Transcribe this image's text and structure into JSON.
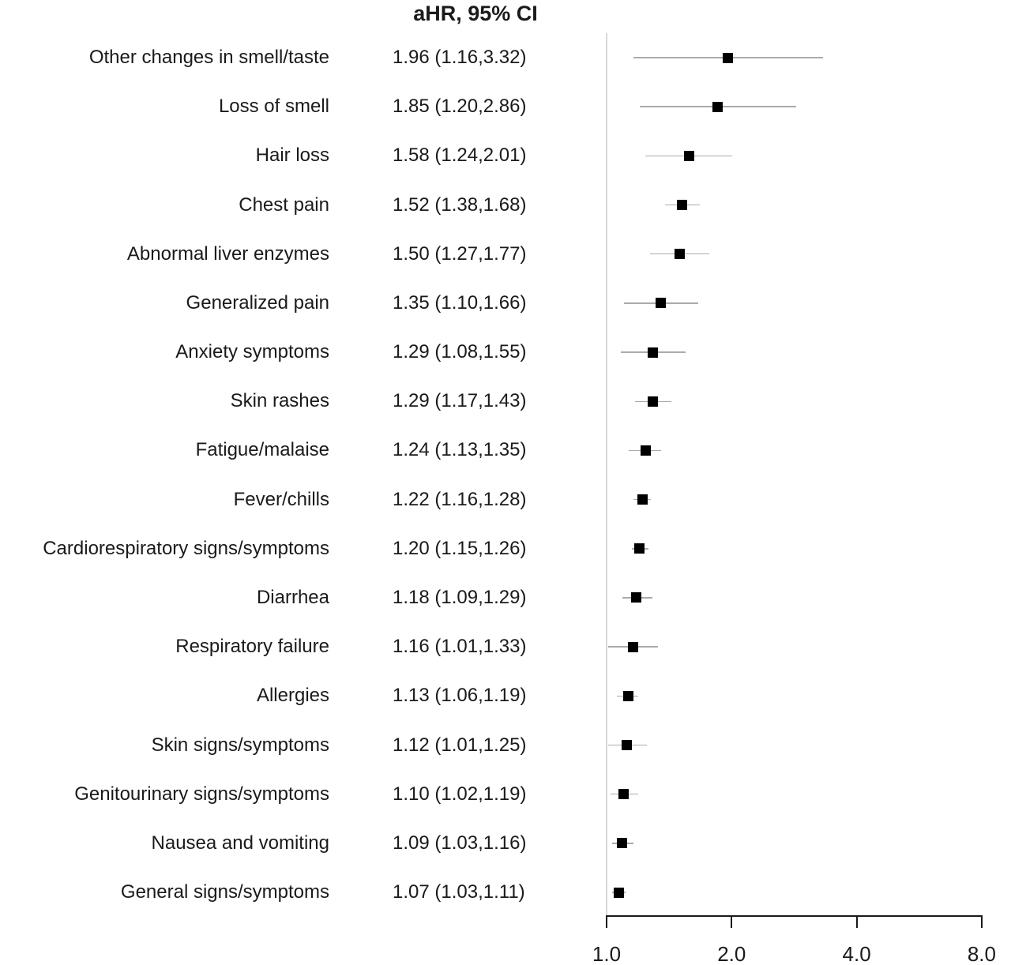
{
  "title": "aHR, 95% CI",
  "colors": {
    "marker": "#000000",
    "ci_line": "#ababab",
    "reference_line": "#d8d8d8",
    "axis": "#1a1a1a",
    "text": "#1a1a1a",
    "background": "#ffffff"
  },
  "chart_data": {
    "type": "scatter",
    "subtype": "forest-plot",
    "title": "aHR, 95% CI",
    "xlabel": "",
    "ylabel": "",
    "x_scale": "log2",
    "xlim": [
      1.0,
      8.0
    ],
    "x_ticks": [
      1.0,
      2.0,
      4.0,
      8.0
    ],
    "x_tick_labels": [
      "1.0",
      "2.0",
      "4.0",
      "8.0"
    ],
    "reference_line": 1.0,
    "grid": false,
    "legend": false,
    "rows": [
      {
        "label": "Other changes in smell/taste",
        "estimate_text": "1.96 (1.16,3.32)",
        "ahr": 1.96,
        "ci_low": 1.16,
        "ci_high": 3.32
      },
      {
        "label": "Loss of smell",
        "estimate_text": "1.85 (1.20,2.86)",
        "ahr": 1.85,
        "ci_low": 1.2,
        "ci_high": 2.86
      },
      {
        "label": "Hair loss",
        "estimate_text": "1.58 (1.24,2.01)",
        "ahr": 1.58,
        "ci_low": 1.24,
        "ci_high": 2.01
      },
      {
        "label": "Chest pain",
        "estimate_text": "1.52 (1.38,1.68)",
        "ahr": 1.52,
        "ci_low": 1.38,
        "ci_high": 1.68
      },
      {
        "label": "Abnormal liver enzymes",
        "estimate_text": "1.50 (1.27,1.77)",
        "ahr": 1.5,
        "ci_low": 1.27,
        "ci_high": 1.77
      },
      {
        "label": "Generalized pain",
        "estimate_text": "1.35 (1.10,1.66)",
        "ahr": 1.35,
        "ci_low": 1.1,
        "ci_high": 1.66
      },
      {
        "label": "Anxiety symptoms",
        "estimate_text": "1.29 (1.08,1.55)",
        "ahr": 1.29,
        "ci_low": 1.08,
        "ci_high": 1.55
      },
      {
        "label": "Skin rashes",
        "estimate_text": "1.29 (1.17,1.43)",
        "ahr": 1.29,
        "ci_low": 1.17,
        "ci_high": 1.43
      },
      {
        "label": "Fatigue/malaise",
        "estimate_text": "1.24 (1.13,1.35)",
        "ahr": 1.24,
        "ci_low": 1.13,
        "ci_high": 1.35
      },
      {
        "label": "Fever/chills",
        "estimate_text": "1.22 (1.16,1.28)",
        "ahr": 1.22,
        "ci_low": 1.16,
        "ci_high": 1.28
      },
      {
        "label": "Cardiorespiratory signs/symptoms",
        "estimate_text": "1.20 (1.15,1.26)",
        "ahr": 1.2,
        "ci_low": 1.15,
        "ci_high": 1.26
      },
      {
        "label": "Diarrhea",
        "estimate_text": "1.18 (1.09,1.29)",
        "ahr": 1.18,
        "ci_low": 1.09,
        "ci_high": 1.29
      },
      {
        "label": "Respiratory failure",
        "estimate_text": "1.16 (1.01,1.33)",
        "ahr": 1.16,
        "ci_low": 1.01,
        "ci_high": 1.33
      },
      {
        "label": "Allergies",
        "estimate_text": "1.13 (1.06,1.19)",
        "ahr": 1.13,
        "ci_low": 1.06,
        "ci_high": 1.19
      },
      {
        "label": "Skin signs/symptoms",
        "estimate_text": "1.12 (1.01,1.25)",
        "ahr": 1.12,
        "ci_low": 1.01,
        "ci_high": 1.25
      },
      {
        "label": "Genitourinary signs/symptoms",
        "estimate_text": "1.10 (1.02,1.19)",
        "ahr": 1.1,
        "ci_low": 1.02,
        "ci_high": 1.19
      },
      {
        "label": "Nausea and vomiting",
        "estimate_text": "1.09 (1.03,1.16)",
        "ahr": 1.09,
        "ci_low": 1.03,
        "ci_high": 1.16
      },
      {
        "label": "General signs/symptoms",
        "estimate_text": "1.07 (1.03,1.11)",
        "ahr": 1.07,
        "ci_low": 1.03,
        "ci_high": 1.11
      }
    ]
  }
}
